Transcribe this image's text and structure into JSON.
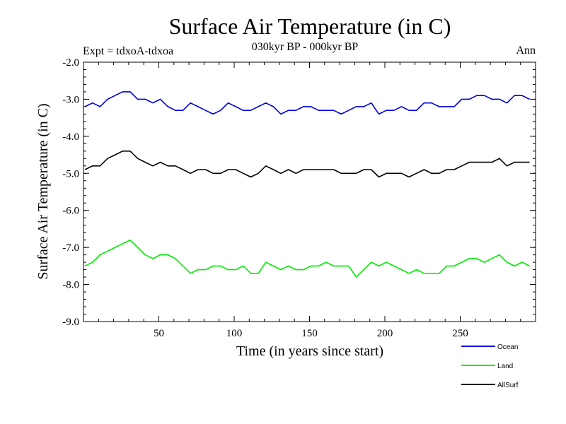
{
  "chart_data": {
    "type": "line",
    "title": "Surface Air Temperature (in C)",
    "subtitle": "030kyr BP - 000kyr BP",
    "left_label": "Expt = tdxoA-tdxoa",
    "right_label": "Ann",
    "xlabel": "Time (in years since start)",
    "ylabel": "Surface Air Temperature (in C)",
    "xlim": [
      0,
      300
    ],
    "ylim": [
      -9.0,
      -2.0
    ],
    "x_ticks": [
      50,
      100,
      150,
      200,
      250
    ],
    "x_tick_labels": [
      "50",
      "100",
      "150",
      "200",
      "250"
    ],
    "y_ticks": [
      -9.0,
      -8.0,
      -7.0,
      -6.0,
      -5.0,
      -4.0,
      -3.0,
      -2.0
    ],
    "y_tick_labels": [
      "-9.0",
      "-8.0",
      "-7.0",
      "-6.0",
      "-5.0",
      "-4.0",
      "-3.0",
      "-2.0"
    ],
    "grid": false,
    "legend_position": "bottom-right",
    "series": [
      {
        "name": "Ocean",
        "color": "#0000dd",
        "x_start": 1,
        "x_step": 5,
        "values": [
          -3.2,
          -3.1,
          -3.2,
          -3.0,
          -2.9,
          -2.8,
          -2.8,
          -3.0,
          -3.0,
          -3.1,
          -3.0,
          -3.2,
          -3.3,
          -3.3,
          -3.1,
          -3.2,
          -3.3,
          -3.4,
          -3.3,
          -3.1,
          -3.2,
          -3.3,
          -3.3,
          -3.2,
          -3.1,
          -3.2,
          -3.4,
          -3.3,
          -3.3,
          -3.2,
          -3.2,
          -3.3,
          -3.3,
          -3.3,
          -3.4,
          -3.3,
          -3.2,
          -3.2,
          -3.1,
          -3.4,
          -3.3,
          -3.3,
          -3.2,
          -3.3,
          -3.3,
          -3.1,
          -3.1,
          -3.2,
          -3.2,
          -3.2,
          -3.0,
          -3.0,
          -2.9,
          -2.9,
          -3.0,
          -3.0,
          -3.1,
          -2.9,
          -2.9,
          -3.0
        ]
      },
      {
        "name": "Land",
        "color": "#00ee00",
        "x_start": 1,
        "x_step": 5,
        "values": [
          -7.5,
          -7.4,
          -7.2,
          -7.1,
          -7.0,
          -6.9,
          -6.8,
          -7.0,
          -7.2,
          -7.3,
          -7.2,
          -7.2,
          -7.3,
          -7.5,
          -7.7,
          -7.6,
          -7.6,
          -7.5,
          -7.5,
          -7.6,
          -7.6,
          -7.5,
          -7.7,
          -7.7,
          -7.4,
          -7.5,
          -7.6,
          -7.5,
          -7.6,
          -7.6,
          -7.5,
          -7.5,
          -7.4,
          -7.5,
          -7.5,
          -7.5,
          -7.8,
          -7.6,
          -7.4,
          -7.5,
          -7.4,
          -7.5,
          -7.6,
          -7.7,
          -7.6,
          -7.7,
          -7.7,
          -7.7,
          -7.5,
          -7.5,
          -7.4,
          -7.3,
          -7.3,
          -7.4,
          -7.3,
          -7.2,
          -7.4,
          -7.5,
          -7.4,
          -7.5
        ]
      },
      {
        "name": "AllSurf",
        "color": "#000000",
        "x_start": 1,
        "x_step": 5,
        "values": [
          -4.9,
          -4.8,
          -4.8,
          -4.6,
          -4.5,
          -4.4,
          -4.4,
          -4.6,
          -4.7,
          -4.8,
          -4.7,
          -4.8,
          -4.8,
          -4.9,
          -5.0,
          -4.9,
          -4.9,
          -5.0,
          -5.0,
          -4.9,
          -4.9,
          -5.0,
          -5.1,
          -5.0,
          -4.8,
          -4.9,
          -5.0,
          -4.9,
          -5.0,
          -4.9,
          -4.9,
          -4.9,
          -4.9,
          -4.9,
          -5.0,
          -5.0,
          -5.0,
          -4.9,
          -4.9,
          -5.1,
          -5.0,
          -5.0,
          -5.0,
          -5.1,
          -5.0,
          -4.9,
          -5.0,
          -5.0,
          -4.9,
          -4.9,
          -4.8,
          -4.7,
          -4.7,
          -4.7,
          -4.7,
          -4.6,
          -4.8,
          -4.7,
          -4.7,
          -4.7
        ]
      }
    ]
  }
}
